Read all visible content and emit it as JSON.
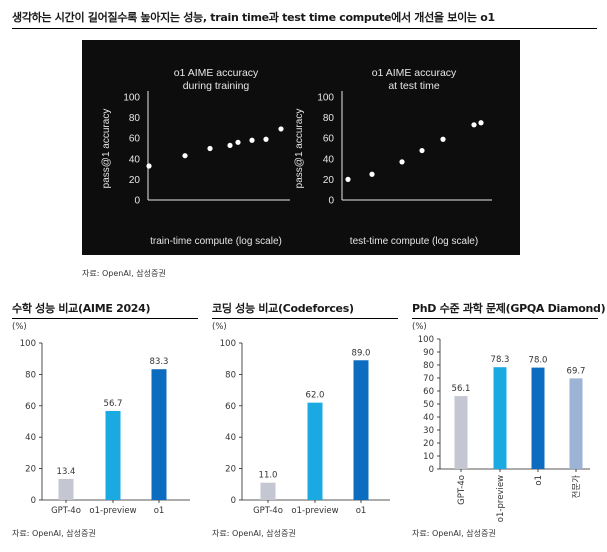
{
  "header": {
    "title": "생각하는 시간이 길어질수록 높아지는 성능, train time과 test time compute에서 개선을 보이는 o1"
  },
  "source_top": "자료: OpenAI, 삼성증권",
  "source_bottom": [
    "자료: OpenAI, 삼성증권",
    "자료: OpenAI, 삼성증권",
    "자료: OpenAI, 삼성증권"
  ],
  "colors": {
    "panel_bg": "#0d0d0d",
    "dot": "#ffffff",
    "gpt4o": "#c4c7d2",
    "o1_preview": "#1ba9e1",
    "o1": "#0b6cc0",
    "expert": "#9db3d6"
  },
  "chart_data": [
    {
      "type": "scatter",
      "title": "o1 AIME accuracy\nduring training",
      "xlabel": "train-time compute (log scale)",
      "ylabel": "pass@1 accuracy",
      "ylim": [
        0,
        100
      ],
      "yticks": [
        "0",
        "20",
        "40",
        "60",
        "80",
        "100"
      ],
      "x_scale": "log",
      "x": [
        1,
        2,
        3,
        4,
        5,
        6,
        7,
        8
      ],
      "y": [
        33,
        43,
        50,
        53,
        56,
        58,
        59,
        69
      ],
      "grid": false
    },
    {
      "type": "scatter",
      "title": "o1 AIME accuracy\nat test time",
      "xlabel": "test-time compute (log scale)",
      "ylabel": "pass@1 accuracy",
      "ylim": [
        0,
        100
      ],
      "yticks": [
        "0",
        "20",
        "40",
        "60",
        "80",
        "100"
      ],
      "x_scale": "log",
      "x": [
        1,
        2,
        3,
        4,
        5,
        6,
        7
      ],
      "y": [
        20,
        25,
        37,
        48,
        59,
        73,
        75
      ],
      "grid": false
    },
    {
      "type": "bar",
      "title": "수학 성능 비교(AIME 2024)",
      "unit": "(%)",
      "categories": [
        "GPT-4o",
        "o1-preview",
        "o1"
      ],
      "values": [
        13.4,
        56.7,
        83.3
      ],
      "labels": [
        "13.4",
        "56.7",
        "83.3"
      ],
      "ylim": [
        0,
        100
      ],
      "yticks": [
        "0",
        "20",
        "40",
        "60",
        "80",
        "100"
      ]
    },
    {
      "type": "bar",
      "title": "코딩 성능 비교(Codeforces)",
      "unit": "(%)",
      "categories": [
        "GPT-4o",
        "o1-preview",
        "o1"
      ],
      "values": [
        11.0,
        62.0,
        89.0
      ],
      "labels": [
        "11.0",
        "62.0",
        "89.0"
      ],
      "ylim": [
        0,
        100
      ],
      "yticks": [
        "0",
        "20",
        "40",
        "60",
        "80",
        "100"
      ]
    },
    {
      "type": "bar",
      "title": "PhD 수준 과학 문제(GPQA Diamond)",
      "unit": "(%)",
      "categories": [
        "GPT-4o",
        "o1-preview",
        "o1",
        "전문가"
      ],
      "values": [
        56.1,
        78.3,
        78.0,
        69.7
      ],
      "labels": [
        "56.1",
        "78.3",
        "78.0",
        "69.7"
      ],
      "ylim": [
        0,
        100
      ],
      "yticks": [
        "0",
        "10",
        "20",
        "30",
        "40",
        "50",
        "60",
        "70",
        "80",
        "90",
        "100"
      ],
      "rotated_category_labels": true
    }
  ]
}
